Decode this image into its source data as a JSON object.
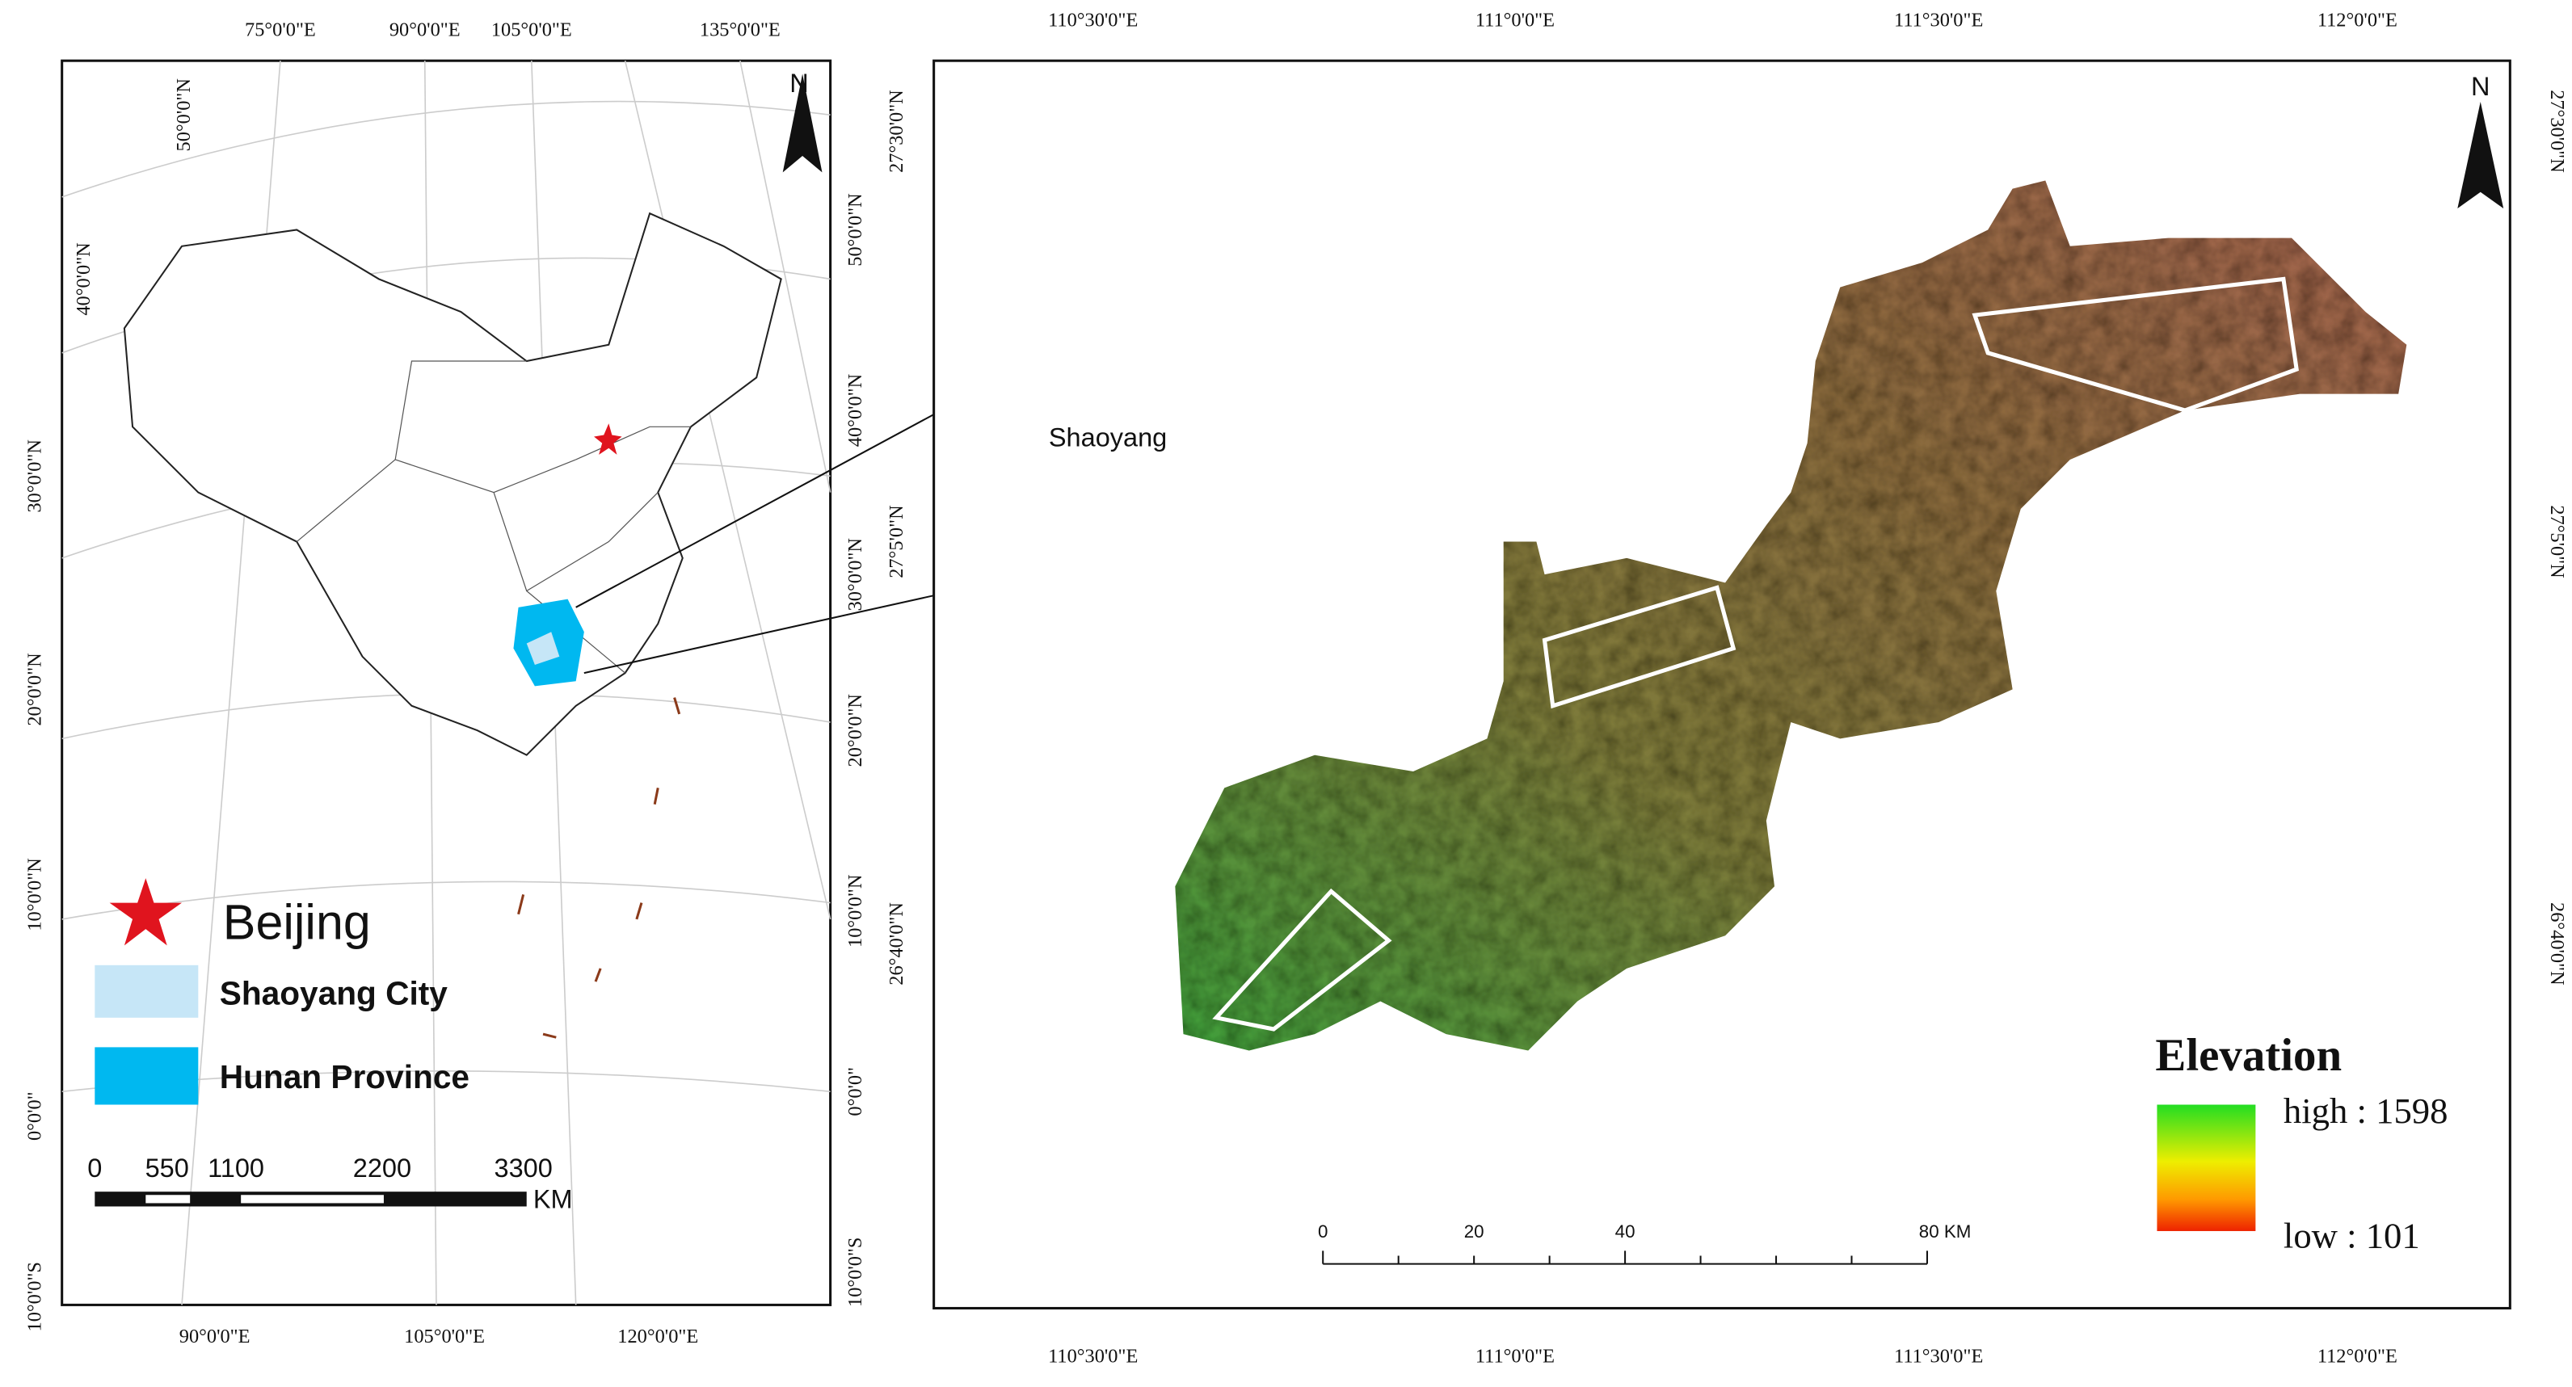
{
  "left_map": {
    "top_labels": [
      "75°0'0\"E",
      "90°0'0\"E",
      "105°0'0\"E",
      "135°0'0\"E"
    ],
    "bottom_labels": [
      "90°0'0\"E",
      "105°0'0\"E",
      "120°0'0\"E"
    ],
    "left_labels": [
      "50°0'0\"N",
      "40°0'0\"N",
      "30°0'0\"N",
      "20°0'0\"N",
      "10°0'0\"N",
      "0°0'0\"",
      "10°0'0\"S"
    ],
    "right_labels": [
      "50°0'0\"N",
      "40°0'0\"N",
      "30°0'0\"N",
      "20°0'0\"N",
      "10°0'0\"N",
      "0°0'0\"",
      "10°0'0\"S"
    ],
    "north": "N",
    "legend": [
      {
        "label": "Beijing"
      },
      {
        "label": "Shaoyang City"
      },
      {
        "label": "Hunan Province"
      }
    ],
    "scale": {
      "ticks": [
        "0",
        "550",
        "1100",
        "2200",
        "3300"
      ],
      "unit": "KM"
    }
  },
  "inset": {
    "label": "Shaoyang"
  },
  "right_map": {
    "top_labels": [
      "110°30'0\"E",
      "111°0'0\"E",
      "111°30'0\"E",
      "112°0'0\"E"
    ],
    "bottom_labels": [
      "110°30'0\"E",
      "111°0'0\"E",
      "111°30'0\"E",
      "112°0'0\"E"
    ],
    "left_labels": [
      "27°30'0\"N",
      "27°5'0\"N",
      "26°40'0\"N"
    ],
    "right_labels": [
      "27°30'0\"N",
      "27°5'0\"N",
      "26°40'0\"N"
    ],
    "north": "N",
    "legend": {
      "title": "Elevation",
      "high": "high : 1598",
      "low": "low : 101"
    },
    "scale": {
      "ticks": [
        "0",
        "20",
        "40",
        "80 KM"
      ]
    }
  }
}
